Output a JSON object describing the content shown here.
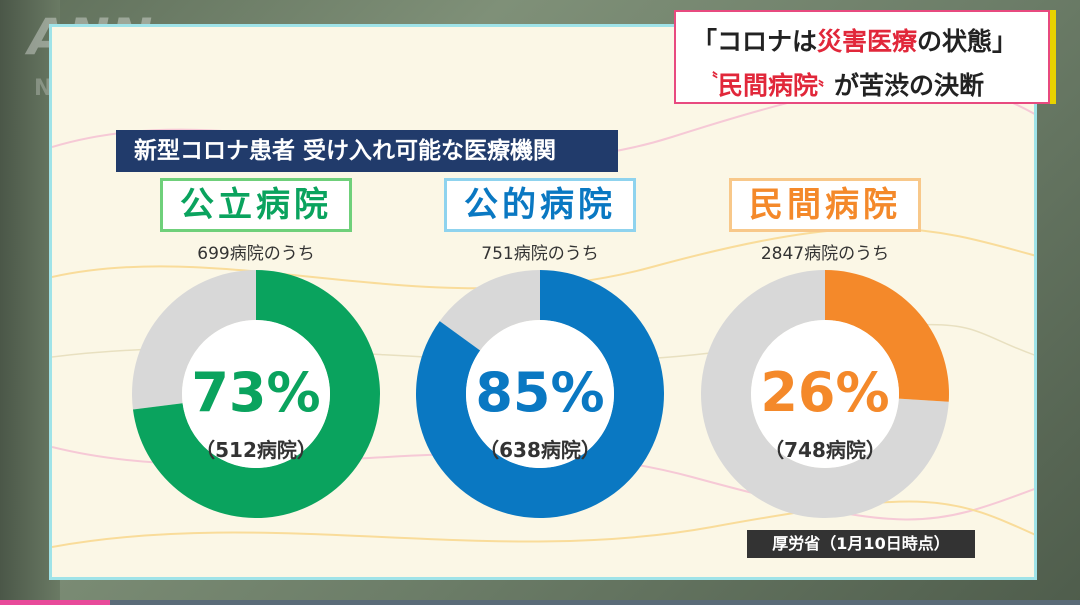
{
  "logo": {
    "text": "ANN",
    "sub": "NEWS"
  },
  "headline": {
    "line1_prefix": "「コロナは",
    "line1_red": "災害医療",
    "line1_suffix": "の状態」",
    "line2_red": "民間病院",
    "line2_suffix": "が苦渋の決断"
  },
  "chart_title": "新型コロナ患者 受け入れ可能な医療機関",
  "colors": {
    "public": "#0aa35e",
    "semi_public": "#0a78c2",
    "private": "#f4892a",
    "remainder": "#d8d8d8",
    "title_bg": "#213b6b"
  },
  "chart_data": {
    "type": "pie",
    "charts": [
      {
        "category": "公立病院",
        "total_label": "699病院のうち",
        "percent": 73,
        "percent_label": "73%",
        "count_label": "（512病院）",
        "color": "#0aa35e"
      },
      {
        "category": "公的病院",
        "total_label": "751病院のうち",
        "percent": 85,
        "percent_label": "85%",
        "count_label": "（638病院）",
        "color": "#0a78c2"
      },
      {
        "category": "民間病院",
        "total_label": "2847病院のうち",
        "percent": 26,
        "percent_label": "26%",
        "count_label": "（748病院）",
        "color": "#f4892a"
      }
    ]
  },
  "source": "厚労省（1月10日時点）"
}
